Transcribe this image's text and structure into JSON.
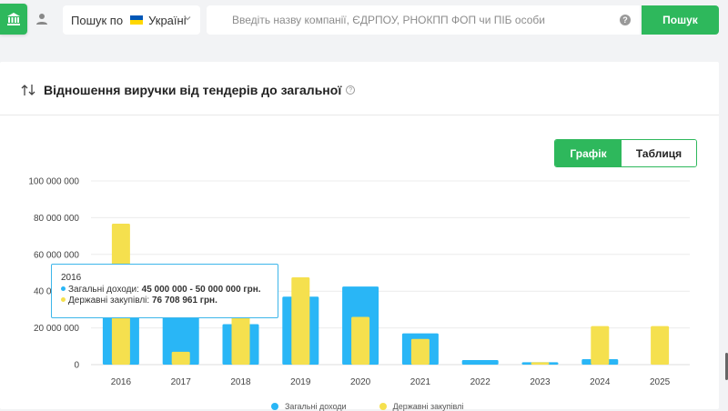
{
  "search": {
    "scope_label": "Пошук по",
    "scope_value": "Україні",
    "placeholder": "Введіть назву компанії, ЄДРПОУ, РНОКПП ФОП чи ПІБ особи",
    "button_label": "Пошук",
    "help_glyph": "?"
  },
  "card": {
    "title": "Відношення виручки від тендерів до загальної",
    "info_glyph": "?"
  },
  "view_toggle": {
    "chart_label": "Графік",
    "table_label": "Таблиця",
    "active": "chart"
  },
  "tooltip": {
    "year": "2016",
    "series1_label": "Загальні доходи:",
    "series1_value": "45 000 000 - 50 000 000 грн.",
    "series2_label": "Державні закупівлі:",
    "series2_value": "76 708 961 грн."
  },
  "colors": {
    "accent": "#2eb85c",
    "series_income": "#29b6f6",
    "series_procurement": "#f5e04e",
    "tooltip_border": "#3db6ea"
  },
  "chart_data": {
    "type": "bar",
    "categories": [
      "2016",
      "2017",
      "2018",
      "2019",
      "2020",
      "2021",
      "2022",
      "2023",
      "2024",
      "2025"
    ],
    "series": [
      {
        "name": "Загальні доходи",
        "values": [
          47500000,
          30000000,
          22000000,
          37000000,
          42500000,
          17000000,
          2500000,
          1300000,
          3000000,
          0
        ]
      },
      {
        "name": "Державні закупівлі",
        "values": [
          76708961,
          7000000,
          27000000,
          47500000,
          26000000,
          14000000,
          0,
          1300000,
          21000000,
          21000000
        ]
      }
    ],
    "yticks": [
      "100 000 000",
      "80 000 000",
      "60 000 000",
      "40 000 000",
      "20 000 000",
      "0"
    ],
    "ytick_values": [
      100000000,
      80000000,
      60000000,
      40000000,
      20000000,
      0
    ],
    "ylim": [
      0,
      100000000
    ],
    "grid": true,
    "legend_position": "bottom"
  }
}
